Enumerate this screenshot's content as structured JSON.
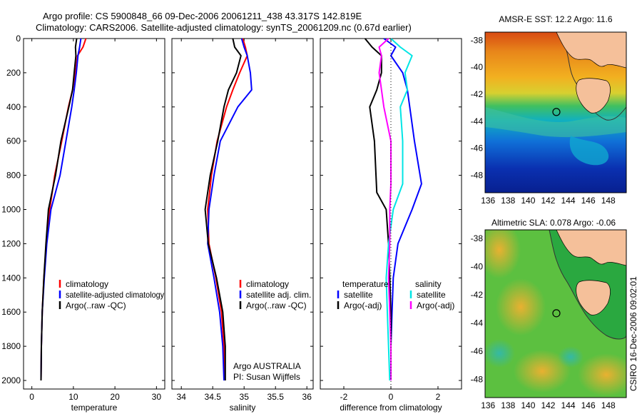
{
  "title": {
    "line1": "Argo profile: CS 5900848_66 09-Dec-2006 20061211_438 43.317S 142.819E",
    "line2": "Climatology: CARS2006. Satellite-adjusted climatology: synTS_20061209.nc (0.67d earlier)"
  },
  "credit": "CSIRO 16-Dec-2006 09:02:01",
  "argo_info": {
    "line1": "Argo AUSTRALIA",
    "line2": "PI: Susan Wijffels"
  },
  "colors": {
    "climatology": "#ff0000",
    "satellite": "#0000ff",
    "argo": "#000000",
    "argo_adj_salinity": "#ff00ff",
    "satellite_salinity": "#00e5e5"
  },
  "chart_data": [
    {
      "id": "temperature",
      "type": "line",
      "xlabel": "temperature",
      "xlim": [
        -2,
        32
      ],
      "xticks": [
        0,
        10,
        20,
        30
      ],
      "ylim": [
        2050,
        0
      ],
      "yticks": [
        0,
        200,
        400,
        600,
        800,
        1000,
        1200,
        1400,
        1600,
        1800,
        2000
      ],
      "legend": [
        "climatology",
        "satellite-adjusted climatology",
        "Argo(..raw -QC)"
      ],
      "legend_placement": "bottom-right",
      "series": [
        {
          "name": "climatology",
          "color": "#ff0000",
          "x": [
            13.0,
            12.3,
            11.0,
            10.5,
            9.8,
            8.8,
            7.2,
            5.5,
            4.3,
            3.5,
            2.9,
            2.5,
            2.3,
            2.2
          ],
          "y": [
            0,
            50,
            100,
            200,
            300,
            400,
            600,
            800,
            1000,
            1200,
            1400,
            1600,
            1800,
            2000
          ]
        },
        {
          "name": "satellite-adjusted climatology",
          "color": "#0000ff",
          "x": [
            11.8,
            11.5,
            11.1,
            10.7,
            10.2,
            9.6,
            8.2,
            6.8,
            4.6,
            3.6,
            3.0,
            2.5,
            2.3,
            2.2
          ],
          "y": [
            0,
            50,
            100,
            200,
            300,
            400,
            600,
            800,
            1000,
            1200,
            1400,
            1600,
            1800,
            2000
          ]
        },
        {
          "name": "Argo(..raw -QC)",
          "color": "#000000",
          "x": [
            10.8,
            10.5,
            10.6,
            10.2,
            9.8,
            8.9,
            7.0,
            5.7,
            4.0,
            3.4,
            2.9,
            2.5,
            2.3,
            2.2
          ],
          "y": [
            0,
            50,
            100,
            200,
            300,
            400,
            600,
            800,
            1000,
            1200,
            1400,
            1600,
            1800,
            2000
          ]
        }
      ]
    },
    {
      "id": "salinity",
      "type": "line",
      "xlabel": "salinity",
      "xlim": [
        33.85,
        36.1
      ],
      "xticks": [
        34,
        34.5,
        35,
        35.5,
        36
      ],
      "xticklabels": [
        "34",
        "34.5",
        "35",
        "35.5",
        "36"
      ],
      "ylim": [
        2050,
        0
      ],
      "legend": [
        "climatology",
        "satellite adj. clim.",
        "Argo(..raw -QC)"
      ],
      "legend_placement": "bottom-right",
      "series": [
        {
          "name": "climatology",
          "color": "#ff0000",
          "x": [
            34.98,
            35.02,
            35.05,
            34.93,
            34.82,
            34.72,
            34.57,
            34.48,
            34.42,
            34.44,
            34.55,
            34.64,
            34.68,
            34.69
          ],
          "y": [
            0,
            50,
            100,
            200,
            300,
            400,
            600,
            800,
            1000,
            1200,
            1400,
            1600,
            1800,
            2000
          ]
        },
        {
          "name": "satellite adj. clim.",
          "color": "#0000ff",
          "x": [
            34.96,
            35.0,
            35.05,
            35.1,
            35.12,
            34.9,
            34.62,
            34.52,
            34.44,
            34.42,
            34.52,
            34.61,
            34.66,
            34.68
          ],
          "y": [
            0,
            50,
            100,
            200,
            300,
            400,
            600,
            800,
            1000,
            1200,
            1400,
            1600,
            1800,
            2000
          ]
        },
        {
          "name": "Argo(..raw -QC)",
          "color": "#000000",
          "x": [
            34.82,
            34.85,
            34.95,
            34.88,
            34.75,
            34.68,
            34.58,
            34.46,
            34.38,
            34.43,
            34.56,
            34.66,
            34.7,
            34.7
          ],
          "y": [
            0,
            50,
            100,
            200,
            300,
            400,
            600,
            800,
            1000,
            1200,
            1400,
            1600,
            1800,
            2000
          ]
        }
      ]
    },
    {
      "id": "difference",
      "type": "line",
      "xlabel": "difference from climatology",
      "xlim": [
        -3,
        3
      ],
      "xticks": [
        -2,
        0,
        2
      ],
      "ylim": [
        2050,
        0
      ],
      "legend_left": {
        "header": "temperature",
        "items": [
          "satellite",
          "Argo(-adj)"
        ]
      },
      "legend_right": {
        "header": "salinity",
        "items": [
          "satellite",
          "Argo(-adj)"
        ]
      },
      "legend_placement": "bottom",
      "series": [
        {
          "name": "temperature satellite",
          "color": "#0000ff",
          "x": [
            -0.3,
            0.2,
            0.0,
            0.5,
            0.7,
            0.8,
            1.0,
            1.3,
            0.9,
            0.3,
            0.1,
            0.05,
            0.0,
            0.0
          ],
          "y": [
            0,
            50,
            100,
            200,
            300,
            400,
            600,
            850,
            1000,
            1200,
            1400,
            1600,
            1800,
            2000
          ]
        },
        {
          "name": "temperature Argo(-adj)",
          "color": "#000000",
          "x": [
            -1.1,
            -0.8,
            -0.4,
            -0.4,
            -0.6,
            -0.9,
            -0.7,
            -0.6,
            -0.2,
            -0.1,
            -0.05,
            0.0,
            0.0,
            0.0
          ],
          "y": [
            0,
            50,
            100,
            200,
            300,
            400,
            600,
            900,
            1000,
            1200,
            1400,
            1600,
            1800,
            2000
          ]
        },
        {
          "name": "salinity satellite",
          "color": "#00e5e5",
          "x": [
            0.0,
            0.4,
            0.9,
            0.6,
            0.7,
            0.4,
            0.5,
            0.5,
            0.1,
            -0.1,
            -0.2,
            -0.15,
            -0.1,
            -0.05
          ],
          "y": [
            0,
            50,
            100,
            200,
            300,
            400,
            600,
            850,
            1000,
            1200,
            1400,
            1600,
            1800,
            2000
          ]
        },
        {
          "name": "salinity Argo(-adj)",
          "color": "#ff00ff",
          "x": [
            -0.1,
            -0.5,
            -0.4,
            -0.5,
            -0.4,
            -0.3,
            0.0,
            0.0,
            -0.05,
            -0.05,
            -0.1,
            -0.05,
            0.0,
            0.0
          ],
          "y": [
            0,
            50,
            100,
            200,
            300,
            400,
            600,
            850,
            1000,
            1200,
            1400,
            1600,
            1800,
            2000
          ]
        }
      ]
    },
    {
      "id": "sst_map",
      "type": "heatmap",
      "title": "AMSR-E SST: 12.2 Argo: 11.6",
      "xlim": [
        135.7,
        149.8
      ],
      "ylim": [
        -49.3,
        -37.4
      ],
      "xticks": [
        136,
        138,
        140,
        142,
        144,
        146,
        148
      ],
      "yticks": [
        -38,
        -40,
        -42,
        -44,
        -46,
        -48
      ],
      "argo_marker": {
        "lon": 142.819,
        "lat": -43.317
      }
    },
    {
      "id": "sla_map",
      "type": "heatmap",
      "title": "Altimetric SLA: 0.078 Argo: -0.06",
      "xlim": [
        135.7,
        149.8
      ],
      "ylim": [
        -49.3,
        -37.4
      ],
      "xticks": [
        136,
        138,
        140,
        142,
        144,
        146,
        148
      ],
      "yticks": [
        -38,
        -40,
        -42,
        -44,
        -46,
        -48
      ],
      "argo_marker": {
        "lon": 142.819,
        "lat": -43.317
      }
    }
  ]
}
